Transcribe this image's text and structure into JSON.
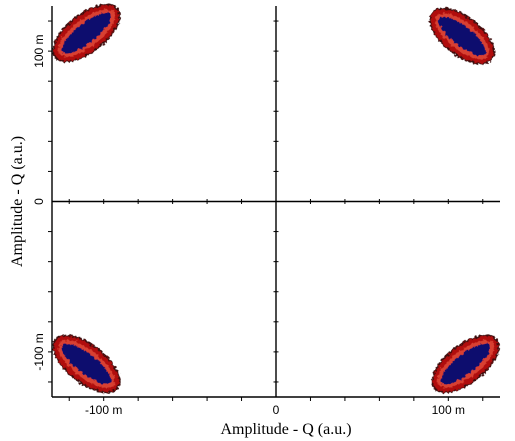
{
  "chart_data": {
    "type": "scatter",
    "title": "",
    "xlabel": "Amplitude - Q (a.u.)",
    "ylabel": "Amplitude - Q (a.u.)",
    "xlim": [
      -130,
      130
    ],
    "ylim": [
      -130,
      130
    ],
    "x_ticks": [
      {
        "value": -100,
        "label": "-100 m"
      },
      {
        "value": 0,
        "label": "0"
      },
      {
        "value": 100,
        "label": "100 m"
      }
    ],
    "y_ticks": [
      {
        "value": 100,
        "label": "100 m"
      },
      {
        "value": 0,
        "label": "0"
      },
      {
        "value": -100,
        "label": "-100 m"
      }
    ],
    "grid": false,
    "colors": {
      "outer": "#b01010",
      "middle": "#d84030",
      "core": "#0a0a6e",
      "edge": "#3a0808"
    },
    "clusters": [
      {
        "name": "upper-left",
        "center": [
          -110,
          112
        ],
        "angle_deg": -38,
        "length": 40,
        "width": 16
      },
      {
        "name": "upper-right",
        "center": [
          108,
          110
        ],
        "angle_deg": 38,
        "length": 38,
        "width": 16
      },
      {
        "name": "lower-left",
        "center": [
          -110,
          -108
        ],
        "angle_deg": 38,
        "length": 40,
        "width": 16
      },
      {
        "name": "lower-right",
        "center": [
          110,
          -108
        ],
        "angle_deg": -38,
        "length": 40,
        "width": 16
      }
    ]
  }
}
